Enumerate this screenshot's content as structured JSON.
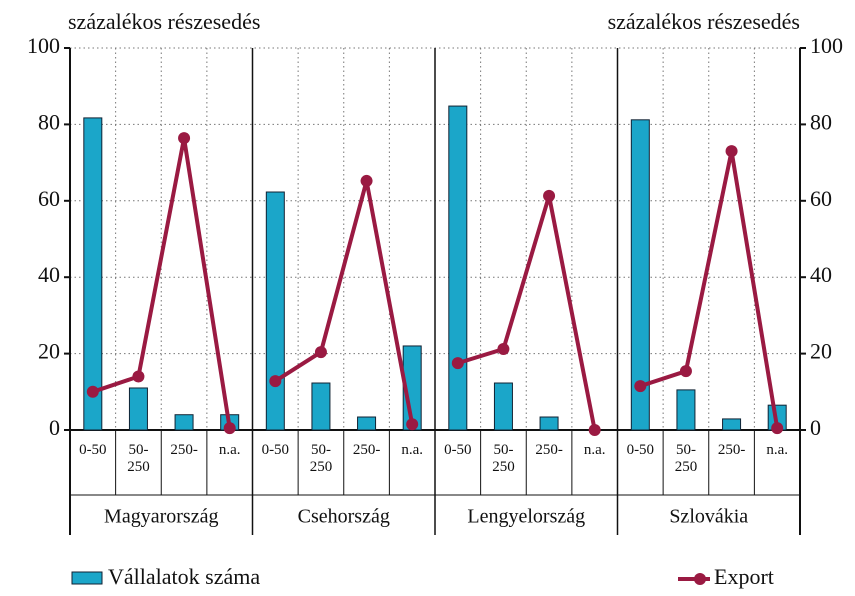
{
  "chart_data": {
    "type": "bar_line",
    "ylabel": "százalékos részesedés",
    "y2label": "százalékos részesedés",
    "groups": [
      "Magyarország",
      "Csehország",
      "Lengyelország",
      "Szlovákia"
    ],
    "categories": [
      "0-50",
      "50-250",
      "250-",
      "n.a.",
      "0-50",
      "50-250",
      "250-",
      "n.a.",
      "0-50",
      "50-250",
      "250-",
      "n.a.",
      "0-50",
      "50-250",
      "250-",
      "n.a."
    ],
    "series": [
      {
        "name": "Vállalatok száma",
        "kind": "bar",
        "axis": "y",
        "color": "#1ba6c9",
        "values": [
          81.7,
          11,
          4,
          4,
          62.3,
          12.3,
          3.4,
          22,
          84.8,
          12.3,
          3.4,
          0,
          81.2,
          10.5,
          2.9,
          6.5
        ]
      },
      {
        "name": "Export",
        "kind": "line",
        "axis": "y2",
        "color": "#9a1a42",
        "values": [
          10,
          14,
          76.4,
          0.5,
          12.8,
          20.4,
          65.2,
          1.5,
          17.5,
          21.2,
          61.3,
          0,
          11.5,
          15.4,
          73,
          0.5
        ]
      }
    ],
    "ylim": [
      0,
      100
    ],
    "yticks": [
      0,
      20,
      40,
      60,
      80,
      100
    ],
    "y2lim": [
      0,
      100
    ],
    "y2ticks": [
      0,
      20,
      40,
      60,
      80,
      100
    ],
    "grid": true
  }
}
